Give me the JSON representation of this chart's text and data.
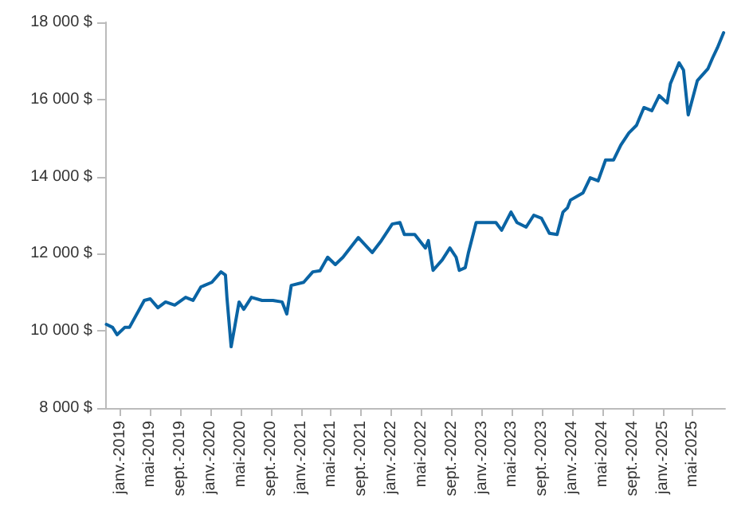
{
  "chart_data": {
    "type": "line",
    "xlim": [
      "2018-11-01",
      "2025-09-10"
    ],
    "ylim": [
      8000,
      18000
    ],
    "yticks": [
      {
        "value": 8000,
        "label": "8 000 $"
      },
      {
        "value": 10000,
        "label": "10 000 $"
      },
      {
        "value": 12000,
        "label": "12 000 $"
      },
      {
        "value": 14000,
        "label": "14 000 $"
      },
      {
        "value": 16000,
        "label": "16 000 $"
      },
      {
        "value": 18000,
        "label": "18 000 $"
      }
    ],
    "xticks": [
      {
        "value": "2019-01",
        "label": "janv.-2019"
      },
      {
        "value": "2019-05",
        "label": "mai-2019"
      },
      {
        "value": "2019-09",
        "label": "sept.-2019"
      },
      {
        "value": "2020-01",
        "label": "janv.-2020"
      },
      {
        "value": "2020-05",
        "label": "mai-2020"
      },
      {
        "value": "2020-09",
        "label": "sept.-2020"
      },
      {
        "value": "2021-01",
        "label": "janv.-2021"
      },
      {
        "value": "2021-05",
        "label": "mai-2021"
      },
      {
        "value": "2021-09",
        "label": "sept.-2021"
      },
      {
        "value": "2022-01",
        "label": "janv.-2022"
      },
      {
        "value": "2022-05",
        "label": "mai-2022"
      },
      {
        "value": "2022-09",
        "label": "sept.-2022"
      },
      {
        "value": "2023-01",
        "label": "janv.-2023"
      },
      {
        "value": "2023-05",
        "label": "mai-2023"
      },
      {
        "value": "2023-09",
        "label": "sept.-2023"
      },
      {
        "value": "2024-01",
        "label": "janv.-2024"
      },
      {
        "value": "2024-05",
        "label": "mai-2024"
      },
      {
        "value": "2024-09",
        "label": "sept.-2024"
      },
      {
        "value": "2025-01",
        "label": "janv.-2025"
      },
      {
        "value": "2025-05",
        "label": "mai-2025"
      }
    ],
    "x": [
      "2018-11-06",
      "2018-12-01",
      "2018-12-19",
      "2019-01-19",
      "2019-02-07",
      "2019-04-08",
      "2019-05-02",
      "2019-06-02",
      "2019-07-03",
      "2019-08-09",
      "2019-09-22",
      "2019-10-22",
      "2019-11-23",
      "2020-01-06",
      "2020-02-12",
      "2020-03-01",
      "2020-03-07",
      "2020-03-24",
      "2020-04-07",
      "2020-04-25",
      "2020-05-14",
      "2020-06-14",
      "2020-07-27",
      "2020-09-09",
      "2020-10-16",
      "2020-11-04",
      "2020-11-22",
      "2021-01-11",
      "2021-02-17",
      "2021-03-18",
      "2021-04-18",
      "2021-05-19",
      "2021-06-19",
      "2021-08-20",
      "2021-10-15",
      "2021-11-21",
      "2022-01-04",
      "2022-02-04",
      "2022-02-22",
      "2022-04-05",
      "2022-05-18",
      "2022-05-30",
      "2022-06-18",
      "2022-07-25",
      "2022-08-25",
      "2022-09-19",
      "2022-10-02",
      "2022-10-26",
      "2022-11-08",
      "2022-12-09",
      "2023-01-21",
      "2023-02-27",
      "2023-03-22",
      "2023-04-29",
      "2023-05-23",
      "2023-06-29",
      "2023-07-30",
      "2023-08-30",
      "2023-10-01",
      "2023-11-01",
      "2023-11-25",
      "2023-12-13",
      "2023-12-25",
      "2024-02-14",
      "2024-03-14",
      "2024-04-15",
      "2024-05-15",
      "2024-06-16",
      "2024-07-16",
      "2024-08-17",
      "2024-09-17",
      "2024-10-17",
      "2024-11-18",
      "2024-12-18",
      "2025-01-19",
      "2025-02-01",
      "2025-03-08",
      "2025-03-26",
      "2025-04-14",
      "2025-05-21",
      "2025-07-03",
      "2025-07-21",
      "2025-08-10",
      "2025-09-04"
    ],
    "series": [
      {
        "color": "#0a64a4",
        "values": [
          10170,
          10090,
          9900,
          10090,
          10090,
          10790,
          10830,
          10600,
          10750,
          10670,
          10870,
          10790,
          11140,
          11260,
          11530,
          11450,
          10870,
          9590,
          10090,
          10750,
          10560,
          10870,
          10790,
          10790,
          10750,
          10440,
          11180,
          11260,
          11530,
          11560,
          11910,
          11720,
          11910,
          12420,
          12030,
          12340,
          12770,
          12810,
          12500,
          12500,
          12150,
          12340,
          11570,
          11840,
          12150,
          11910,
          11570,
          11640,
          12030,
          12810,
          12810,
          12810,
          12610,
          13080,
          12810,
          12690,
          13000,
          12920,
          12530,
          12500,
          13080,
          13190,
          13390,
          13580,
          13970,
          13890,
          14430,
          14430,
          14820,
          15130,
          15330,
          15790,
          15710,
          16100,
          15910,
          16410,
          16950,
          16760,
          15600,
          16490,
          16800,
          17070,
          17340,
          17730
        ]
      }
    ],
    "grid": false,
    "marker": "none",
    "line_style": "solid"
  }
}
